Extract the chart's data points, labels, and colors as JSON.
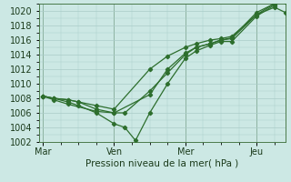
{
  "title": "Pression niveau de la mer( hPa )",
  "background_color": "#cce8e4",
  "grid_color": "#aaccc8",
  "line_color": "#2d6e2d",
  "ylim": [
    1002,
    1021
  ],
  "yticks": [
    1002,
    1004,
    1006,
    1008,
    1010,
    1012,
    1014,
    1016,
    1018,
    1020
  ],
  "xlabel_ticks": [
    0,
    2,
    4,
    6
  ],
  "xlabel_labels": [
    "Mar",
    "Ven",
    "Mer",
    "Jeu"
  ],
  "xlim": [
    -0.1,
    6.8
  ],
  "series": [
    [
      0.0,
      1008.3,
      0.3,
      1008.0,
      0.7,
      1007.5,
      1.0,
      1007.0,
      1.5,
      1006.0,
      2.0,
      1004.5,
      2.3,
      1004.0,
      2.6,
      1002.2,
      3.0,
      1006.0,
      3.5,
      1010.0,
      4.0,
      1013.5,
      4.3,
      1014.5,
      4.7,
      1015.3,
      5.0,
      1015.8,
      5.3,
      1015.8,
      6.0,
      1019.3,
      6.5,
      1020.8
    ],
    [
      0.0,
      1008.3,
      0.3,
      1008.0,
      0.7,
      1007.8,
      1.0,
      1007.5,
      1.5,
      1006.5,
      2.0,
      1006.0,
      2.3,
      1006.0,
      3.0,
      1009.0,
      3.5,
      1011.5,
      4.0,
      1014.0,
      4.3,
      1015.0,
      4.7,
      1015.5,
      5.0,
      1016.0,
      5.3,
      1016.2,
      6.0,
      1019.5,
      6.5,
      1021.0,
      6.8,
      1021.5
    ],
    [
      0.0,
      1008.3,
      0.3,
      1008.0,
      0.7,
      1007.8,
      1.0,
      1007.5,
      1.5,
      1007.0,
      2.0,
      1006.5,
      3.0,
      1012.0,
      3.5,
      1013.8,
      4.0,
      1015.0,
      4.3,
      1015.5,
      4.7,
      1016.0,
      5.0,
      1016.2,
      5.3,
      1016.5,
      6.0,
      1019.5,
      6.5,
      1020.5,
      6.8,
      1019.8
    ],
    [
      0.0,
      1008.3,
      0.3,
      1007.8,
      0.7,
      1007.2,
      1.5,
      1006.2,
      2.0,
      1006.0,
      3.0,
      1008.5,
      3.5,
      1012.0,
      4.0,
      1014.2,
      4.3,
      1015.0,
      4.7,
      1015.5,
      5.0,
      1016.0,
      5.3,
      1016.3,
      6.0,
      1019.8,
      6.5,
      1021.0,
      6.8,
      1021.3
    ]
  ],
  "vlines": [
    0,
    2,
    4,
    6
  ],
  "marker": "D",
  "marker_size": 2.2,
  "linewidth": 0.9
}
